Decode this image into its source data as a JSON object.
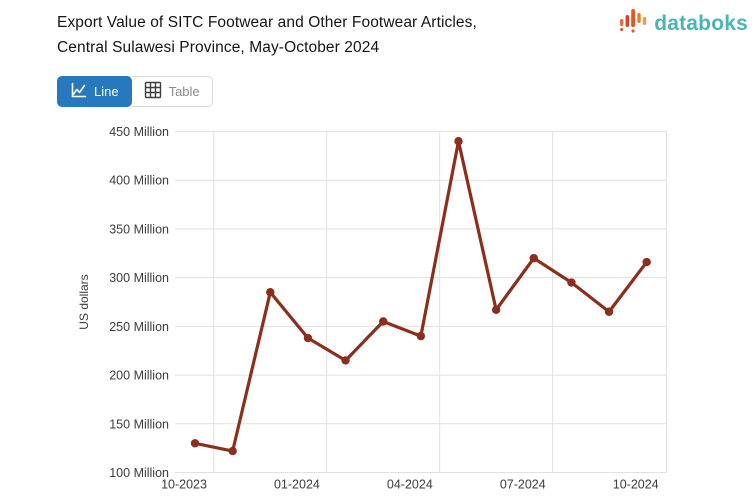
{
  "header": {
    "title_line1": "Export Value of SITC Footwear and Other Footwear Articles,",
    "title_line2": "Central Sulawesi Province, May-October 2024",
    "logo_text": "databoks",
    "logo_text_color": "#49b6af",
    "logo_bar_colors": [
      "#e06a4a",
      "#d94226",
      "#e8541f",
      "#ef7f1b",
      "#f09a57"
    ]
  },
  "toolbar": {
    "line_label": "Line",
    "table_label": "Table",
    "active_color": "#2878be",
    "inactive_text_color": "#8a8a8a"
  },
  "chart_data": {
    "type": "line",
    "title": "Export Value of SITC Footwear and Other Footwear Articles, Central Sulawesi Province, May-October 2024",
    "categories": [
      "10-2023",
      "11-2023",
      "12-2023",
      "01-2024",
      "02-2024",
      "03-2024",
      "04-2024",
      "05-2024",
      "06-2024",
      "07-2024",
      "08-2024",
      "09-2024",
      "10-2024"
    ],
    "values": [
      130,
      122,
      285,
      238,
      215,
      255,
      240,
      440,
      267,
      320,
      295,
      265,
      316
    ],
    "xlabel": "",
    "ylabel": "US dollars",
    "ylim": [
      100,
      450
    ],
    "y_ticks": [
      100,
      150,
      200,
      250,
      300,
      350,
      400,
      450
    ],
    "y_tick_suffix": " Million",
    "x_tick_indices": [
      0,
      3,
      6,
      9,
      12
    ],
    "x_tick_labels": [
      "10-2023",
      "01-2024",
      "04-2024",
      "07-2024",
      "10-2024"
    ],
    "grid": true,
    "legend": "none",
    "line_color": "#8b2e1b",
    "gridline_color": "#e1e1e1",
    "tick_label_color": "#3c3c3c"
  }
}
